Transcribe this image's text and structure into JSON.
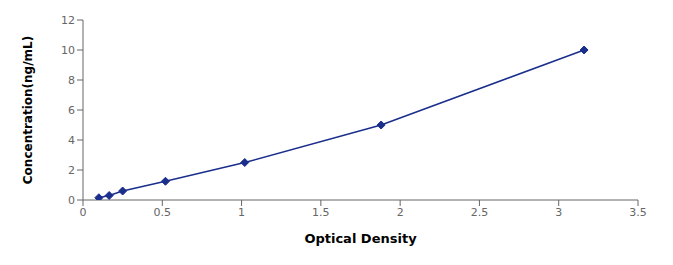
{
  "chart_data": {
    "type": "line",
    "x": [
      0.1,
      0.165,
      0.25,
      0.52,
      1.02,
      1.88,
      3.16
    ],
    "values": [
      0.15,
      0.3,
      0.6,
      1.25,
      2.5,
      5.0,
      10.0
    ],
    "color": "#1a2e8c",
    "marker": "diamond",
    "xlabel": "Optical Density",
    "ylabel": "Concentration(ng/mL)",
    "xlim": [
      0,
      3.5
    ],
    "ylim": [
      0,
      12
    ],
    "xticks": [
      0,
      0.5,
      1,
      1.5,
      2,
      2.5,
      3,
      3.5
    ],
    "yticks": [
      0,
      2,
      4,
      6,
      8,
      10,
      12
    ],
    "grid": false
  }
}
